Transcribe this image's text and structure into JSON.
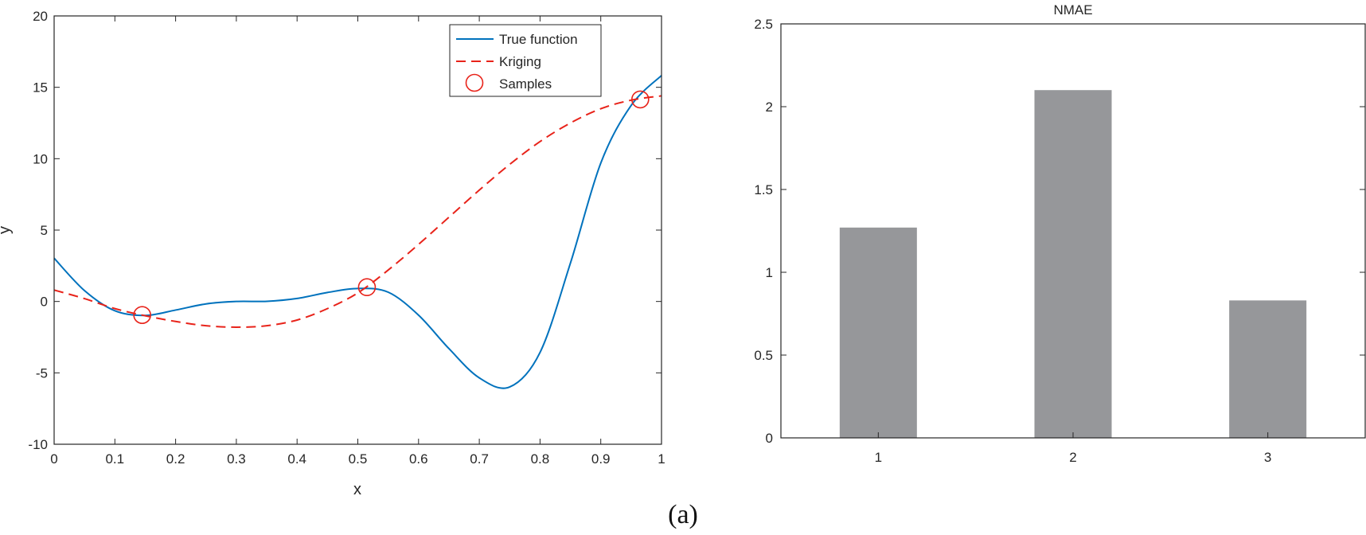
{
  "caption": "(a)",
  "chart_data": [
    {
      "type": "line",
      "title": "",
      "xlabel": "x",
      "ylabel": "y",
      "xlim": [
        0,
        1
      ],
      "ylim": [
        -10,
        20
      ],
      "xticks": [
        0,
        0.1,
        0.2,
        0.3,
        0.4,
        0.5,
        0.6,
        0.7,
        0.8,
        0.9,
        1
      ],
      "xtick_labels": [
        "0",
        "0.1",
        "0.2",
        "0.3",
        "0.4",
        "0.5",
        "0.6",
        "0.7",
        "0.8",
        "0.9",
        "1"
      ],
      "yticks": [
        -10,
        -5,
        0,
        5,
        10,
        15,
        20
      ],
      "ytick_labels": [
        "-10",
        "-5",
        "0",
        "5",
        "10",
        "15",
        "20"
      ],
      "legend_position": "top-right",
      "series": [
        {
          "name": "True function",
          "style": "solid",
          "color": "#0072BD",
          "x": [
            0,
            0.05,
            0.1,
            0.15,
            0.2,
            0.25,
            0.3,
            0.35,
            0.4,
            0.45,
            0.5,
            0.55,
            0.6,
            0.65,
            0.7,
            0.75,
            0.8,
            0.85,
            0.9,
            0.95,
            1.0
          ],
          "y": [
            3.03,
            0.76,
            -0.65,
            -0.98,
            -0.6,
            -0.17,
            0.0,
            0.01,
            0.21,
            0.63,
            0.91,
            0.65,
            -0.96,
            -3.3,
            -5.35,
            -5.99,
            -3.57,
            2.68,
            9.69,
            13.73,
            15.83
          ]
        },
        {
          "name": "Kriging",
          "style": "dashed",
          "color": "#E8231A",
          "x": [
            0,
            0.05,
            0.1,
            0.15,
            0.2,
            0.25,
            0.3,
            0.35,
            0.4,
            0.45,
            0.5,
            0.55,
            0.6,
            0.65,
            0.7,
            0.75,
            0.8,
            0.85,
            0.9,
            0.95,
            1.0
          ],
          "y": [
            0.8,
            0.2,
            -0.5,
            -1.0,
            -1.4,
            -1.7,
            -1.8,
            -1.7,
            -1.3,
            -0.5,
            0.6,
            2.2,
            4.0,
            5.9,
            7.8,
            9.6,
            11.2,
            12.5,
            13.5,
            14.1,
            14.4
          ]
        },
        {
          "name": "Samples",
          "style": "markers",
          "color": "#E8231A",
          "x": [
            0.145,
            0.515,
            0.965
          ],
          "y": [
            -0.95,
            1.0,
            14.15
          ]
        }
      ]
    },
    {
      "type": "bar",
      "title": "NMAE",
      "xlabel": "",
      "ylabel": "",
      "categories": [
        "1",
        "2",
        "3"
      ],
      "values": [
        1.27,
        2.1,
        0.83
      ],
      "ylim": [
        0,
        2.5
      ],
      "yticks": [
        0,
        0.5,
        1,
        1.5,
        2,
        2.5
      ],
      "ytick_labels": [
        "0",
        "0.5",
        "1",
        "1.5",
        "2",
        "2.5"
      ],
      "bar_color": "#96979A"
    }
  ]
}
